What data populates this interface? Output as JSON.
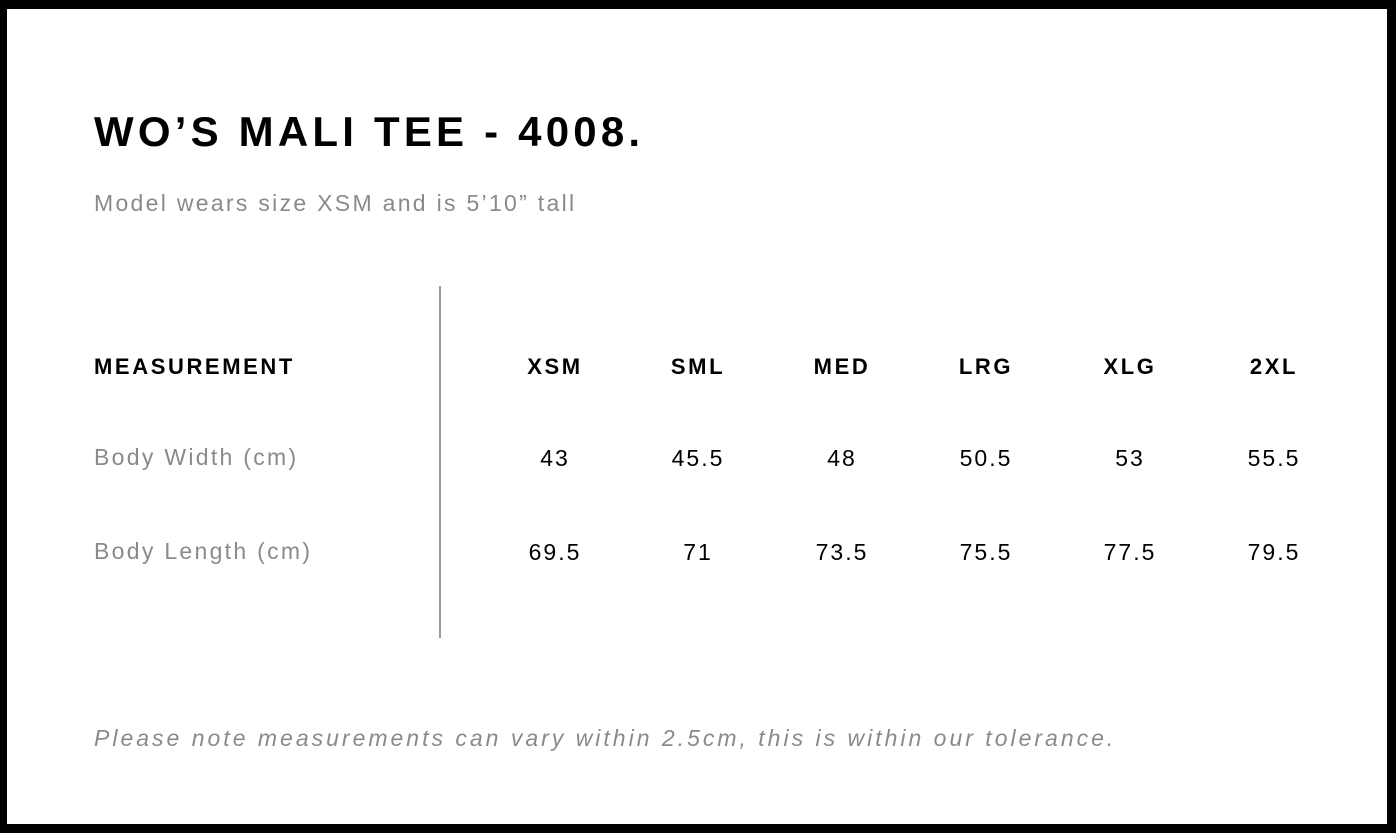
{
  "title": "WO’S MALI TEE - 4008.",
  "subtitle": "Model wears size XSM and is 5’10” tall",
  "table": {
    "header_label": "MEASUREMENT",
    "sizes": [
      "XSM",
      "SML",
      "MED",
      "LRG",
      "XLG",
      "2XL"
    ],
    "rows": [
      {
        "label": "Body Width (cm)",
        "values": [
          "43",
          "45.5",
          "48",
          "50.5",
          "53",
          "55.5"
        ]
      },
      {
        "label": "Body Length (cm)",
        "values": [
          "69.5",
          "71",
          "73.5",
          "75.5",
          "77.5",
          "79.5"
        ]
      }
    ]
  },
  "note": "Please note measurements can vary within 2.5cm, this is within our tolerance."
}
